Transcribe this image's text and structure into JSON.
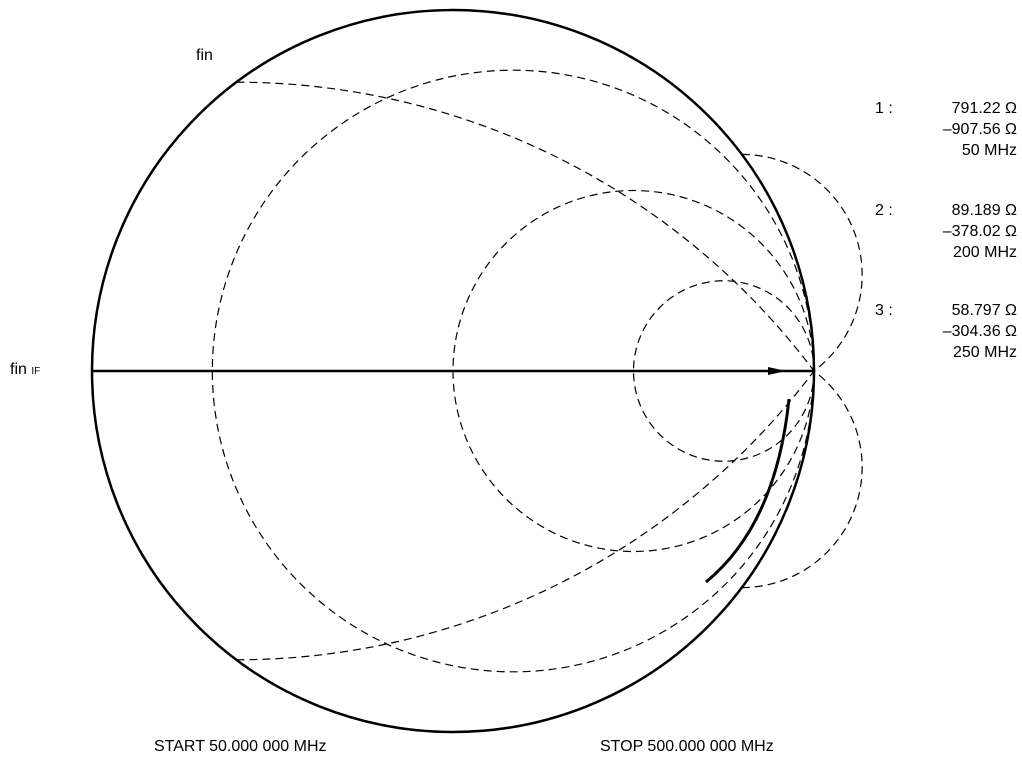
{
  "labels": {
    "top_left": "fin",
    "left_main": "fin",
    "left_sub": "IF",
    "start": "START 50.000 000 MHz",
    "stop": "STOP  500.000 000 MHz"
  },
  "markers": [
    {
      "index": "1 :",
      "resistance": "791.22 Ω",
      "reactance": "–907.56 Ω",
      "frequency": "50 MHz"
    },
    {
      "index": "2 :",
      "resistance": "89.189 Ω",
      "reactance": "–378.02 Ω",
      "frequency": "200 MHz"
    },
    {
      "index": "3 :",
      "resistance": "58.797 Ω",
      "reactance": "–304.36 Ω",
      "frequency": "250 MHz"
    }
  ],
  "chart_data": {
    "type": "smith",
    "reference_impedance_ohm": 50,
    "resistance_circles_normalized": [
      0.2,
      1,
      3
    ],
    "reactance_arcs_normalized": [
      0.5,
      1,
      3
    ],
    "trace_markers": [
      {
        "frequency_mhz": 50,
        "r_ohm": 791.22,
        "x_ohm": -907.56
      },
      {
        "frequency_mhz": 200,
        "r_ohm": 89.189,
        "x_ohm": -378.02
      },
      {
        "frequency_mhz": 250,
        "r_ohm": 58.797,
        "x_ohm": -304.36
      }
    ],
    "frequency_range_mhz": [
      50,
      500
    ]
  }
}
